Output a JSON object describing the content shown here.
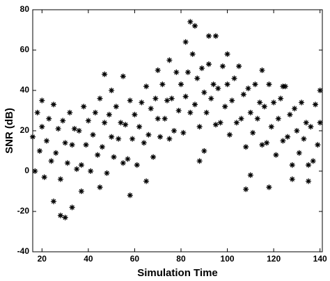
{
  "chart_data": {
    "type": "scatter",
    "x_label": "Simulation Time",
    "y_label": "SNR (dB)",
    "xlim": [
      16,
      141
    ],
    "ylim": [
      -40,
      80
    ],
    "xticks": [
      20,
      40,
      60,
      80,
      100,
      120,
      140
    ],
    "yticks": [
      -40,
      -20,
      0,
      20,
      40,
      60,
      80
    ],
    "color": "#000000",
    "x": [
      16,
      17,
      18,
      19,
      20,
      21,
      22,
      23,
      24,
      25,
      26,
      27,
      28,
      29,
      30,
      31,
      32,
      33,
      34,
      35,
      36,
      37,
      38,
      39,
      40,
      41,
      42,
      43,
      44,
      45,
      46,
      47,
      48,
      49,
      50,
      51,
      52,
      53,
      54,
      55,
      56,
      57,
      58,
      59,
      60,
      61,
      62,
      63,
      64,
      65,
      66,
      67,
      68,
      69,
      70,
      71,
      72,
      73,
      74,
      75,
      76,
      77,
      78,
      79,
      80,
      81,
      82,
      83,
      84,
      85,
      86,
      87,
      88,
      89,
      90,
      91,
      92,
      93,
      94,
      95,
      96,
      97,
      98,
      99,
      100,
      101,
      102,
      103,
      104,
      105,
      106,
      107,
      108,
      109,
      110,
      111,
      112,
      113,
      114,
      115,
      116,
      117,
      118,
      119,
      120,
      121,
      122,
      123,
      124,
      125,
      126,
      127,
      128,
      129,
      130,
      131,
      132,
      133,
      134,
      135,
      136,
      137,
      138,
      139,
      140,
      84,
      86,
      92,
      95,
      82,
      28,
      30,
      33,
      58,
      108,
      118,
      128,
      47,
      55,
      20,
      140,
      124,
      75,
      100,
      70,
      65,
      110,
      37,
      25,
      135,
      90,
      88,
      45,
      50,
      115
    ],
    "y": [
      17,
      0,
      29,
      10,
      22,
      -3,
      15,
      26,
      5,
      33,
      9,
      21,
      -4,
      25,
      14,
      4,
      29,
      13,
      21,
      1,
      20,
      3,
      32,
      13,
      25,
      0,
      18,
      29,
      8,
      36,
      12,
      24,
      -1,
      28,
      17,
      7,
      32,
      16,
      24,
      4,
      23,
      6,
      35,
      16,
      28,
      3,
      22,
      34,
      14,
      42,
      18,
      31,
      7,
      36,
      26,
      17,
      43,
      26,
      35,
      16,
      36,
      20,
      49,
      30,
      43,
      19,
      37,
      49,
      29,
      58,
      33,
      46,
      22,
      51,
      39,
      29,
      53,
      36,
      43,
      23,
      41,
      24,
      52,
      32,
      43,
      18,
      35,
      46,
      24,
      52,
      26,
      38,
      12,
      41,
      29,
      19,
      43,
      26,
      34,
      13,
      32,
      14,
      43,
      22,
      34,
      8,
      26,
      36,
      15,
      42,
      17,
      28,
      3,
      31,
      20,
      9,
      34,
      16,
      24,
      3,
      22,
      5,
      33,
      13,
      24,
      74,
      72,
      67,
      67,
      64,
      -22,
      -23,
      -18,
      -12,
      -9,
      -8,
      -4,
      48,
      47,
      35,
      40,
      42,
      55,
      58,
      50,
      -5,
      -2,
      -10,
      -15,
      -5,
      10,
      5,
      -8,
      40,
      50
    ]
  }
}
